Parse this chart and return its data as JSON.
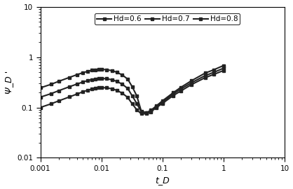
{
  "title": "",
  "xlabel": "t_D",
  "ylabel": "Ψ_D '",
  "xlim": [
    0.001,
    10
  ],
  "ylim": [
    0.01,
    10
  ],
  "legend_labels": [
    "Hd=0.6",
    "Hd=0.7",
    "Hd=0.8"
  ],
  "line_color": "#222222",
  "marker": "s",
  "markersize": 3.2,
  "linewidth": 1.5,
  "curves": {
    "Hd06": {
      "x": [
        0.001,
        0.0015,
        0.002,
        0.003,
        0.004,
        0.005,
        0.006,
        0.007,
        0.008,
        0.009,
        0.01,
        0.012,
        0.015,
        0.018,
        0.022,
        0.027,
        0.032,
        0.038,
        0.045,
        0.055,
        0.065,
        0.08,
        0.1,
        0.15,
        0.2,
        0.3,
        0.5,
        0.7,
        1.0
      ],
      "y": [
        0.1,
        0.118,
        0.135,
        0.162,
        0.185,
        0.205,
        0.22,
        0.232,
        0.24,
        0.245,
        0.248,
        0.245,
        0.235,
        0.218,
        0.192,
        0.158,
        0.118,
        0.09,
        0.075,
        0.075,
        0.082,
        0.1,
        0.12,
        0.172,
        0.212,
        0.285,
        0.39,
        0.455,
        0.54
      ]
    },
    "Hd07": {
      "x": [
        0.001,
        0.0015,
        0.002,
        0.003,
        0.004,
        0.005,
        0.006,
        0.007,
        0.008,
        0.009,
        0.01,
        0.012,
        0.015,
        0.018,
        0.022,
        0.027,
        0.032,
        0.038,
        0.045,
        0.055,
        0.065,
        0.08,
        0.1,
        0.15,
        0.2,
        0.3,
        0.5,
        0.7,
        1.0
      ],
      "y": [
        0.16,
        0.188,
        0.215,
        0.258,
        0.292,
        0.32,
        0.342,
        0.358,
        0.368,
        0.375,
        0.378,
        0.372,
        0.355,
        0.328,
        0.29,
        0.238,
        0.17,
        0.12,
        0.082,
        0.078,
        0.086,
        0.105,
        0.128,
        0.185,
        0.232,
        0.31,
        0.428,
        0.5,
        0.6
      ]
    },
    "Hd08": {
      "x": [
        0.001,
        0.0015,
        0.002,
        0.003,
        0.004,
        0.005,
        0.006,
        0.007,
        0.008,
        0.009,
        0.01,
        0.012,
        0.015,
        0.018,
        0.022,
        0.027,
        0.032,
        0.038,
        0.045,
        0.055,
        0.065,
        0.08,
        0.1,
        0.15,
        0.2,
        0.3,
        0.5,
        0.7,
        1.0
      ],
      "y": [
        0.245,
        0.288,
        0.33,
        0.395,
        0.448,
        0.49,
        0.522,
        0.545,
        0.56,
        0.568,
        0.572,
        0.562,
        0.538,
        0.498,
        0.442,
        0.365,
        0.258,
        0.17,
        0.085,
        0.078,
        0.088,
        0.108,
        0.135,
        0.196,
        0.25,
        0.34,
        0.48,
        0.562,
        0.678
      ]
    }
  }
}
